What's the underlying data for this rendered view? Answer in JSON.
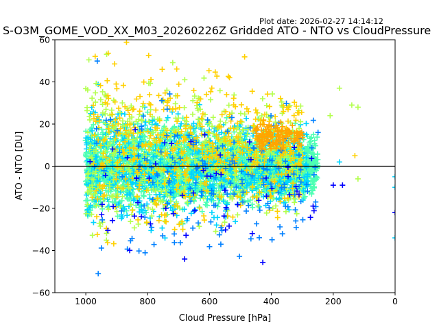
{
  "chart_data": {
    "type": "scatter",
    "title": "S-O3M_GOME_VOD_XX_M03_20260226Z Gridded ATO - NTO vs CloudPressure",
    "subtitle": "Plot date: 2026-02-27 14:14:12",
    "xlabel": "Cloud Pressure [hPa]",
    "ylabel": "ATO - NTO [DU]",
    "xlim": [
      1100,
      0
    ],
    "ylim": [
      -60,
      60
    ],
    "x_ticks": [
      1000,
      800,
      600,
      400,
      200,
      0
    ],
    "y_ticks": [
      -60,
      -40,
      -20,
      0,
      20,
      40,
      60
    ],
    "marker": "plus",
    "reference_line_y": 0,
    "grid": false,
    "legend": "none",
    "colors": [
      "#00008b",
      "#0000ff",
      "#0080ff",
      "#00d4ff",
      "#4dffb3",
      "#b3ff4d",
      "#ffd000",
      "#ffa500"
    ],
    "point_groups": [
      {
        "x_range": [
          1000,
          250
        ],
        "y_center": 0,
        "y_spread": 22,
        "color": "#4dffb3",
        "count": 2600
      },
      {
        "x_range": [
          1000,
          280
        ],
        "y_center": 0,
        "y_spread": 30,
        "color": "#00d4ff",
        "count": 900
      },
      {
        "x_range": [
          1000,
          300
        ],
        "y_center": 5,
        "y_spread": 40,
        "color": "#b3ff4d",
        "count": 600
      },
      {
        "x_range": [
          980,
          300
        ],
        "y_center": 10,
        "y_spread": 45,
        "color": "#ffd000",
        "count": 500
      },
      {
        "x_range": [
          980,
          250
        ],
        "y_center": -5,
        "y_spread": 50,
        "color": "#0080ff",
        "count": 180
      },
      {
        "x_range": [
          1000,
          250
        ],
        "y_center": -10,
        "y_spread": 45,
        "color": "#0000ff",
        "count": 60
      },
      {
        "x_range": [
          450,
          300
        ],
        "y_center": 14,
        "y_spread": 8,
        "color": "#ffa500",
        "count": 140
      }
    ],
    "outliers": [
      {
        "x": 0,
        "y": -22,
        "color": "#0000ff"
      },
      {
        "x": 0,
        "y": -34,
        "color": "#00d4ff"
      },
      {
        "x": 0,
        "y": -5,
        "color": "#00d4ff"
      },
      {
        "x": 0,
        "y": -10,
        "color": "#00d4ff"
      },
      {
        "x": 120,
        "y": 28,
        "color": "#b3ff4d"
      },
      {
        "x": 140,
        "y": 29,
        "color": "#b3ff4d"
      },
      {
        "x": 180,
        "y": 37,
        "color": "#b3ff4d"
      },
      {
        "x": 170,
        "y": -9,
        "color": "#0000ff"
      },
      {
        "x": 180,
        "y": 2,
        "color": "#00d4ff"
      },
      {
        "x": 120,
        "y": -6,
        "color": "#b3ff4d"
      },
      {
        "x": 130,
        "y": 5,
        "color": "#ffd000"
      },
      {
        "x": 210,
        "y": 24,
        "color": "#b3ff4d"
      },
      {
        "x": 200,
        "y": -9,
        "color": "#0000ff"
      }
    ]
  }
}
